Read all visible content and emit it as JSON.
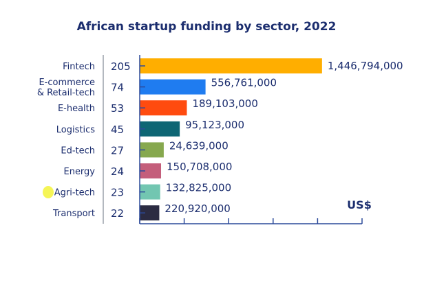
{
  "chart_data": {
    "type": "bar",
    "orientation": "horizontal",
    "title": "African startup funding by sector, 2022",
    "categories": [
      "Fintech",
      "E-commerce & Retail-tech",
      "E-health",
      "Logistics",
      "Ed-tech",
      "Energy",
      "Agri-tech",
      "Transport"
    ],
    "category_lines": [
      [
        "Fintech"
      ],
      [
        "E-commerce",
        "& Retail-tech"
      ],
      [
        "E-health"
      ],
      [
        "Logistics"
      ],
      [
        "Ed-tech"
      ],
      [
        "Energy"
      ],
      [
        "Agri-tech"
      ],
      [
        "Transport"
      ]
    ],
    "deal_counts": [
      205,
      74,
      53,
      45,
      27,
      24,
      23,
      22
    ],
    "funding_labels": [
      "1,446,794,000",
      "556,761,000",
      "189,103,000",
      "95,123,000",
      "24,639,000",
      "150,708,000",
      "132,825,000",
      "220,920,000"
    ],
    "funding_usd": [
      1446794000,
      556761000,
      189103000,
      95123000,
      24639000,
      150708000,
      132825000,
      220920000
    ],
    "colors": [
      "#FFAE00",
      "#1F7CF0",
      "#FF4B0F",
      "#0E6674",
      "#86A84E",
      "#C45E7B",
      "#72C6B1",
      "#2B2B42"
    ],
    "xlim": [
      0,
      250
    ],
    "xticks": [
      0,
      50,
      100,
      150,
      200,
      250
    ],
    "unit_label": "US$",
    "grid": false
  }
}
